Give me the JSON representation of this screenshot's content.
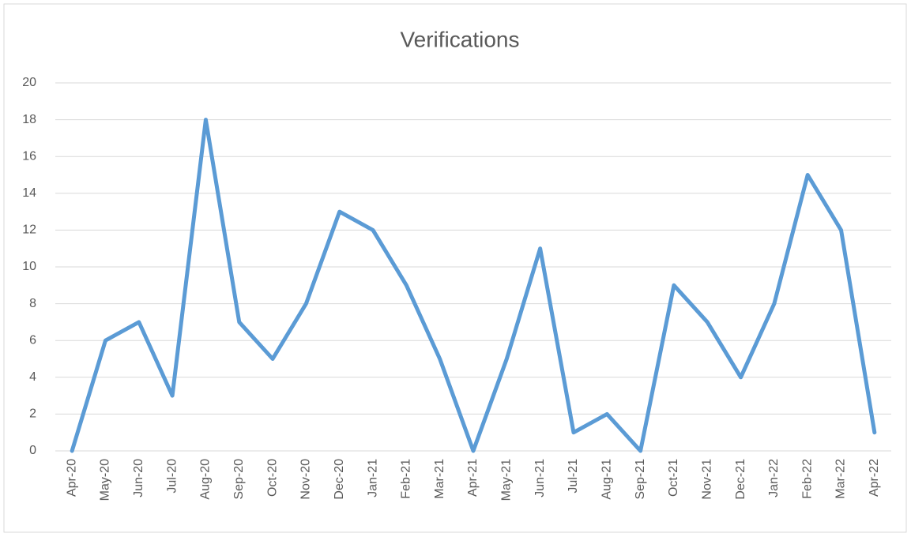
{
  "chart_data": {
    "type": "line",
    "title": "Verifications",
    "categories": [
      "Apr-20",
      "May-20",
      "Jun-20",
      "Jul-20",
      "Aug-20",
      "Sep-20",
      "Oct-20",
      "Nov-20",
      "Dec-20",
      "Jan-21",
      "Feb-21",
      "Mar-21",
      "Apr-21",
      "May-21",
      "Jun-21",
      "Jul-21",
      "Aug-21",
      "Sep-21",
      "Oct-21",
      "Nov-21",
      "Dec-21",
      "Jan-22",
      "Feb-22",
      "Mar-22",
      "Apr-22"
    ],
    "values": [
      0,
      6,
      7,
      3,
      18,
      7,
      5,
      8,
      13,
      12,
      9,
      5,
      0,
      5,
      11,
      1,
      2,
      0,
      9,
      7,
      4,
      8,
      15,
      12,
      1
    ],
    "color": "#5b9bd5",
    "ylim": [
      0,
      20
    ],
    "yticks": [
      0,
      2,
      4,
      6,
      8,
      10,
      12,
      14,
      16,
      18,
      20
    ],
    "grid": true
  }
}
